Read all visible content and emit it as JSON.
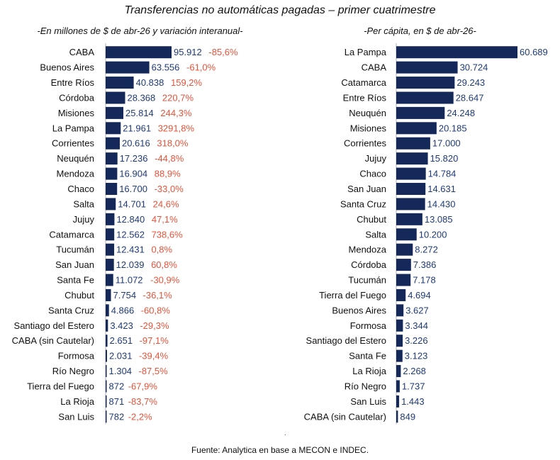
{
  "title": "Transferencias no automáticas pagadas – primer cuatrimestre",
  "source": "Fuente: Analytica en base a MECON e INDEC.",
  "colors": {
    "bar": "#14285a",
    "value_text": "#1f3a78",
    "pct_text": "#e8533a",
    "label_text": "#111111",
    "axis": "#b0b0b0"
  },
  "chart_data": [
    {
      "type": "bar",
      "orientation": "horizontal",
      "subtitle": "-En millones de $ de abr-26 y variación interanual-",
      "categories": [
        "CABA",
        "Buenos Aires",
        "Entre Ríos",
        "Córdoba",
        "Misiones",
        "La Pampa",
        "Corrientes",
        "Neuquén",
        "Mendoza",
        "Chaco",
        "Salta",
        "Jujuy",
        "Catamarca",
        "Tucumán",
        "San Juan",
        "Santa Fe",
        "Chubut",
        "Santa Cruz",
        "Santiago del Estero",
        "CABA (sin Cautelar)",
        "Formosa",
        "Río Negro",
        "Tierra del Fuego",
        "La Rioja",
        "San Luis"
      ],
      "values": [
        95912,
        63556,
        40838,
        28368,
        25814,
        21961,
        20616,
        17236,
        16904,
        16700,
        14701,
        12840,
        12562,
        12431,
        12039,
        11072,
        7754,
        4866,
        3423,
        2651,
        2031,
        1304,
        872,
        871,
        782
      ],
      "value_labels": [
        "95.912",
        "63.556",
        "40.838",
        "28.368",
        "25.814",
        "21.961",
        "20.616",
        "17.236",
        "16.904",
        "16.700",
        "14.701",
        "12.840",
        "12.562",
        "12.431",
        "12.039",
        "11.072",
        "7.754",
        "4.866",
        "3.423",
        "2.651",
        "2.031",
        "1.304",
        "872",
        "871",
        "782"
      ],
      "variation_labels": [
        "-85,6%",
        "-61,0%",
        "159,2%",
        "220,7%",
        "244,3%",
        "3291,8%",
        "318,0%",
        "-44,8%",
        "88,9%",
        "-33,0%",
        "24,6%",
        "47,1%",
        "738,6%",
        "0,8%",
        "60,8%",
        "-30,9%",
        "-36,1%",
        "-60,8%",
        "-29,3%",
        "-97,1%",
        "-39,4%",
        "-87,5%",
        "-67,9%",
        "-83,7%",
        "-2,2%"
      ],
      "xlim": [
        0,
        95912
      ]
    },
    {
      "type": "bar",
      "orientation": "horizontal",
      "subtitle": "-Per cápita, en $ de abr-26-",
      "categories": [
        "La Pampa",
        "CABA",
        "Catamarca",
        "Entre Ríos",
        "Neuquén",
        "Misiones",
        "Corrientes",
        "Jujuy",
        "Chaco",
        "San Juan",
        "Santa Cruz",
        "Chubut",
        "Salta",
        "Mendoza",
        "Córdoba",
        "Tucumán",
        "Tierra del Fuego",
        "Buenos Aires",
        "Formosa",
        "Santiago del Estero",
        "Santa Fe",
        "La Rioja",
        "Río Negro",
        "San Luis",
        "CABA (sin Cautelar)"
      ],
      "values": [
        60689,
        30724,
        29243,
        28647,
        24248,
        20185,
        17000,
        15820,
        14784,
        14631,
        14430,
        13085,
        10200,
        8272,
        7386,
        7178,
        4694,
        3627,
        3344,
        3226,
        3123,
        2268,
        1737,
        1443,
        849
      ],
      "value_labels": [
        "60.689",
        "30.724",
        "29.243",
        "28.647",
        "24.248",
        "20.185",
        "17.000",
        "15.820",
        "14.784",
        "14.631",
        "14.430",
        "13.085",
        "10.200",
        "8.272",
        "7.386",
        "7.178",
        "4.694",
        "3.627",
        "3.344",
        "3.226",
        "3.123",
        "2.268",
        "1.737",
        "1.443",
        "849"
      ],
      "xlim": [
        0,
        60689
      ]
    }
  ]
}
